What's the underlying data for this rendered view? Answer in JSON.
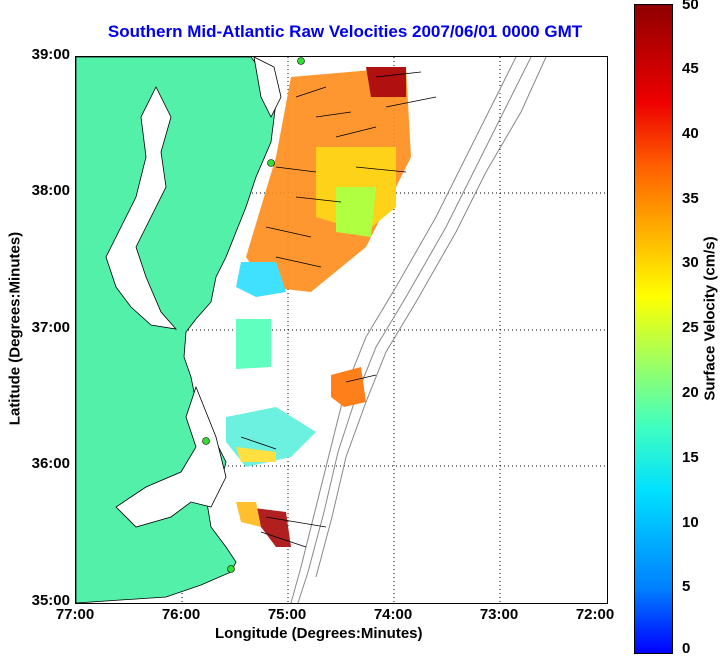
{
  "title": "Southern Mid-Atlantic Raw Velocities 2007/06/01 0000 GMT",
  "x_axis": {
    "label": "Longitude (Degrees:Minutes)",
    "ticks": [
      "77:00",
      "76:00",
      "75:00",
      "74:00",
      "73:00",
      "72:00"
    ]
  },
  "y_axis": {
    "label": "Latitude (Degrees:Minutes)",
    "ticks": [
      "39:00",
      "38:00",
      "37:00",
      "36:00",
      "35:00"
    ]
  },
  "colorbar": {
    "label": "Surface Velocity (cm/s)",
    "ticks": [
      "50",
      "45",
      "40",
      "35",
      "30",
      "25",
      "20",
      "15",
      "10",
      "5",
      "0"
    ]
  },
  "colors": {
    "land": "#52f0a8",
    "title": "#0000ee"
  }
}
